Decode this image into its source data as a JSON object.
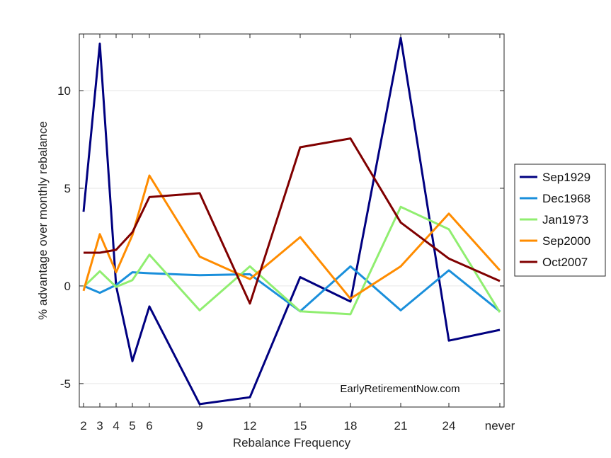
{
  "chart_data": {
    "type": "line",
    "xlabel": "Rebalance Frequency",
    "ylabel": "% advantage over monthly rebalance",
    "x_tick_labels": [
      "2",
      "3",
      "4",
      "5",
      "6",
      "9",
      "12",
      "15",
      "18",
      "21",
      "24",
      "never"
    ],
    "y_ticks": [
      -5,
      0,
      5,
      10
    ],
    "ylim": [
      -6.2,
      12.9
    ],
    "grid": "horizontal",
    "legend_position": "outside-right",
    "annotation": "EarlyRetirementNow.com",
    "series": [
      {
        "name": "Sep1929",
        "color": "#000080",
        "values": [
          3.8,
          12.4,
          0.0,
          -3.85,
          -1.05,
          -6.05,
          -5.7,
          0.45,
          -0.8,
          12.7,
          -2.8,
          -2.25
        ]
      },
      {
        "name": "Dec1968",
        "color": "#1a8fdb",
        "values": [
          0.0,
          -0.35,
          0.05,
          0.7,
          0.65,
          0.55,
          0.6,
          -1.3,
          1.0,
          -1.25,
          0.8,
          -1.3
        ]
      },
      {
        "name": "Jan1973",
        "color": "#90ee70",
        "values": [
          -0.05,
          0.75,
          -0.05,
          0.3,
          1.6,
          -1.25,
          1.0,
          -1.3,
          -1.45,
          4.05,
          2.9,
          -1.35
        ]
      },
      {
        "name": "Sep2000",
        "color": "#ff8c00",
        "values": [
          -0.25,
          2.65,
          0.7,
          2.6,
          5.65,
          1.5,
          0.35,
          2.5,
          -0.65,
          1.0,
          3.7,
          0.8
        ]
      },
      {
        "name": "Oct2007",
        "color": "#800000",
        "values": [
          1.7,
          1.7,
          1.85,
          2.75,
          4.55,
          4.75,
          -0.9,
          7.1,
          7.55,
          3.25,
          1.4,
          0.25
        ]
      }
    ]
  }
}
